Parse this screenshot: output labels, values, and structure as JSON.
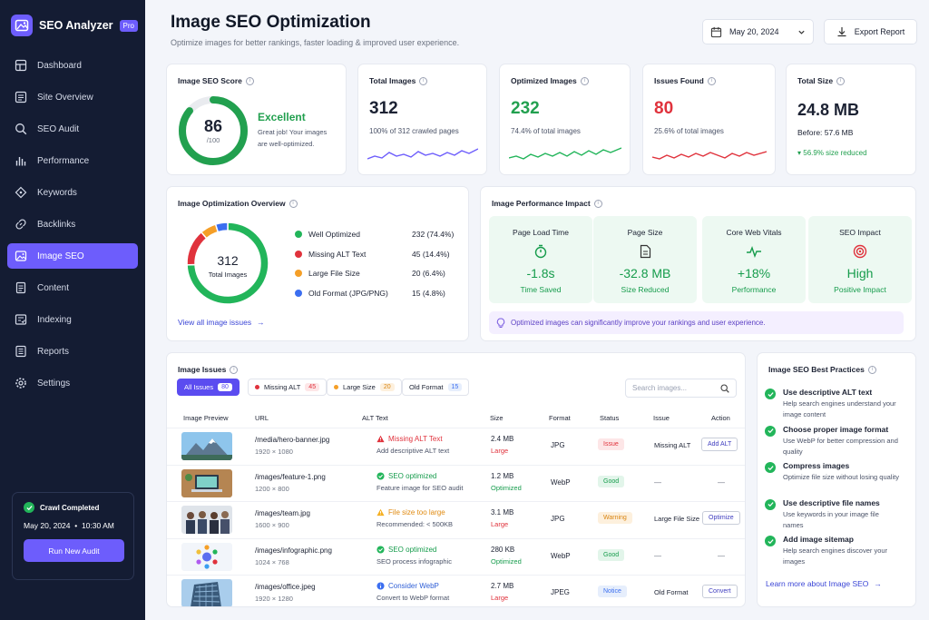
{
  "sidebar": {
    "brand": "SEO Analyzer",
    "badge": "Pro",
    "items": [
      {
        "label": "Dashboard",
        "icon": "dashboard-icon"
      },
      {
        "label": "Site Overview",
        "icon": "site-overview-icon"
      },
      {
        "label": "SEO Audit",
        "icon": "search-icon"
      },
      {
        "label": "Performance",
        "icon": "bar-chart-icon"
      },
      {
        "label": "Keywords",
        "icon": "keywords-icon"
      },
      {
        "label": "Backlinks",
        "icon": "link-icon"
      },
      {
        "label": "Image SEO",
        "icon": "image-icon",
        "active": true
      },
      {
        "label": "Content",
        "icon": "document-icon"
      },
      {
        "label": "Indexing",
        "icon": "indexing-icon"
      },
      {
        "label": "Reports",
        "icon": "reports-icon"
      },
      {
        "label": "Settings",
        "icon": "gear-icon"
      }
    ],
    "crawl": {
      "title": "Crawl Completed",
      "date": "May 20, 2024",
      "time": "10:30 AM",
      "button": "Run New Audit"
    }
  },
  "header": {
    "title": "Image SEO Optimization",
    "subtitle": "Optimize images for better rankings, faster loading & improved user experience.",
    "date": "May 20, 2024",
    "export": "Export Report"
  },
  "score": {
    "title": "Image SEO Score",
    "value": "86",
    "max": "/100",
    "fraction": 0.86,
    "rating": "Excellent",
    "desc1": "Great job! Your images",
    "desc2": "are well-optimized."
  },
  "stats": [
    {
      "title": "Total Images",
      "value": "312",
      "sub": "100% of 312 crawled pages",
      "color": "#6d5dfc"
    },
    {
      "title": "Optimized Images",
      "value": "232",
      "sub": "74.4% of total images",
      "color": "#22b55a"
    },
    {
      "title": "Issues Found",
      "value": "80",
      "sub": "25.6% of total images",
      "color": "#e0323c"
    }
  ],
  "total_size": {
    "title": "Total Size",
    "value": "24.8 MB",
    "before": "Before: 57.6 MB",
    "reduced": "56.9% size reduced"
  },
  "overview": {
    "title": "Image Optimization Overview",
    "center_value": "312",
    "center_label": "Total Images",
    "link": "View all image issues",
    "legend": [
      {
        "label": "Well Optimized",
        "value": "232 (74.4%)",
        "count": 232,
        "color": "#22b55a"
      },
      {
        "label": "Missing ALT Text",
        "value": "45 (14.4%)",
        "count": 45,
        "color": "#e0323c"
      },
      {
        "label": "Large File Size",
        "value": "20 (6.4%)",
        "count": 20,
        "color": "#f59f27"
      },
      {
        "label": "Old Format (JPG/PNG)",
        "value": "15 (4.8%)",
        "count": 15,
        "color": "#3b6ef0"
      }
    ]
  },
  "impact": {
    "title": "Image Performance Impact",
    "tiles": [
      {
        "label": "Page Load Time",
        "value": "-1.8s",
        "sub": "Time Saved",
        "icon": "stopwatch-icon"
      },
      {
        "label": "Page Size",
        "value": "-32.8 MB",
        "sub": "Size Reduced",
        "icon": "file-icon"
      },
      {
        "label": "Core Web Vitals",
        "value": "+18%",
        "sub": "Performance",
        "icon": "pulse-icon"
      },
      {
        "label": "SEO Impact",
        "value": "High",
        "sub": "Positive Impact",
        "icon": "target-icon"
      }
    ],
    "tip": "Optimized images can significantly improve your rankings and user experience."
  },
  "issues": {
    "title": "Image Issues",
    "filters": [
      {
        "label": "All Issues",
        "count": "80"
      },
      {
        "label": "Missing ALT",
        "count": "45"
      },
      {
        "label": "Large Size",
        "count": "20"
      },
      {
        "label": "Old Format",
        "count": "15"
      }
    ],
    "search_placeholder": "Search images...",
    "columns": [
      "Image Preview",
      "URL",
      "ALT Text",
      "Size",
      "Format",
      "Status",
      "Issue",
      "Action"
    ],
    "rows": [
      {
        "url": "/media/hero-banner.jpg",
        "dim": "1920 × 1080",
        "alt": "Missing ALT Text",
        "alt_sub": "Add descriptive ALT text",
        "alt_state": "error",
        "size": "2.4 MB",
        "size_tag": "Large",
        "format": "JPG",
        "status": "Issue",
        "issue": "Missing ALT",
        "action": "Add ALT",
        "thumb": "mountain"
      },
      {
        "url": "/images/feature-1.png",
        "dim": "1200 × 800",
        "alt": "SEO optimized",
        "alt_sub": "Feature image for SEO audit",
        "alt_state": "ok",
        "size": "1.2 MB",
        "size_tag": "Optimized",
        "format": "WebP",
        "status": "Good",
        "issue": "—",
        "action": "—",
        "thumb": "laptop"
      },
      {
        "url": "/images/team.jpg",
        "dim": "1600 × 900",
        "alt": "File size too large",
        "alt_sub": "Recommended: < 500KB",
        "alt_state": "warn",
        "size": "3.1 MB",
        "size_tag": "Large",
        "format": "JPG",
        "status": "Warning",
        "issue": "Large File Size",
        "action": "Optimize",
        "thumb": "team"
      },
      {
        "url": "/images/infographic.png",
        "dim": "1024 × 768",
        "alt": "SEO optimized",
        "alt_sub": "SEO process infographic",
        "alt_state": "ok",
        "size": "280 KB",
        "size_tag": "Optimized",
        "format": "WebP",
        "status": "Good",
        "issue": "—",
        "action": "—",
        "thumb": "infographic"
      },
      {
        "url": "/images/office.jpeg",
        "dim": "1920 × 1280",
        "alt": "Consider WebP",
        "alt_sub": "Convert to WebP format",
        "alt_state": "info",
        "size": "2.7 MB",
        "size_tag": "Large",
        "format": "JPEG",
        "status": "Notice",
        "issue": "Old Format",
        "action": "Convert",
        "thumb": "office"
      }
    ]
  },
  "best_practices": {
    "title": "Image SEO Best Practices",
    "items": [
      {
        "title": "Use descriptive ALT text",
        "desc": "Help search engines understand your image content"
      },
      {
        "title": "Choose proper image format",
        "desc": "Use WebP for better compression and quality"
      },
      {
        "title": "Compress images",
        "desc": "Optimize file size without losing quality"
      },
      {
        "title": "Use descriptive file names",
        "desc": "Use keywords in your image file names"
      },
      {
        "title": "Add image sitemap",
        "desc": "Help search engines discover your images"
      }
    ],
    "link": "Learn more about Image SEO"
  }
}
